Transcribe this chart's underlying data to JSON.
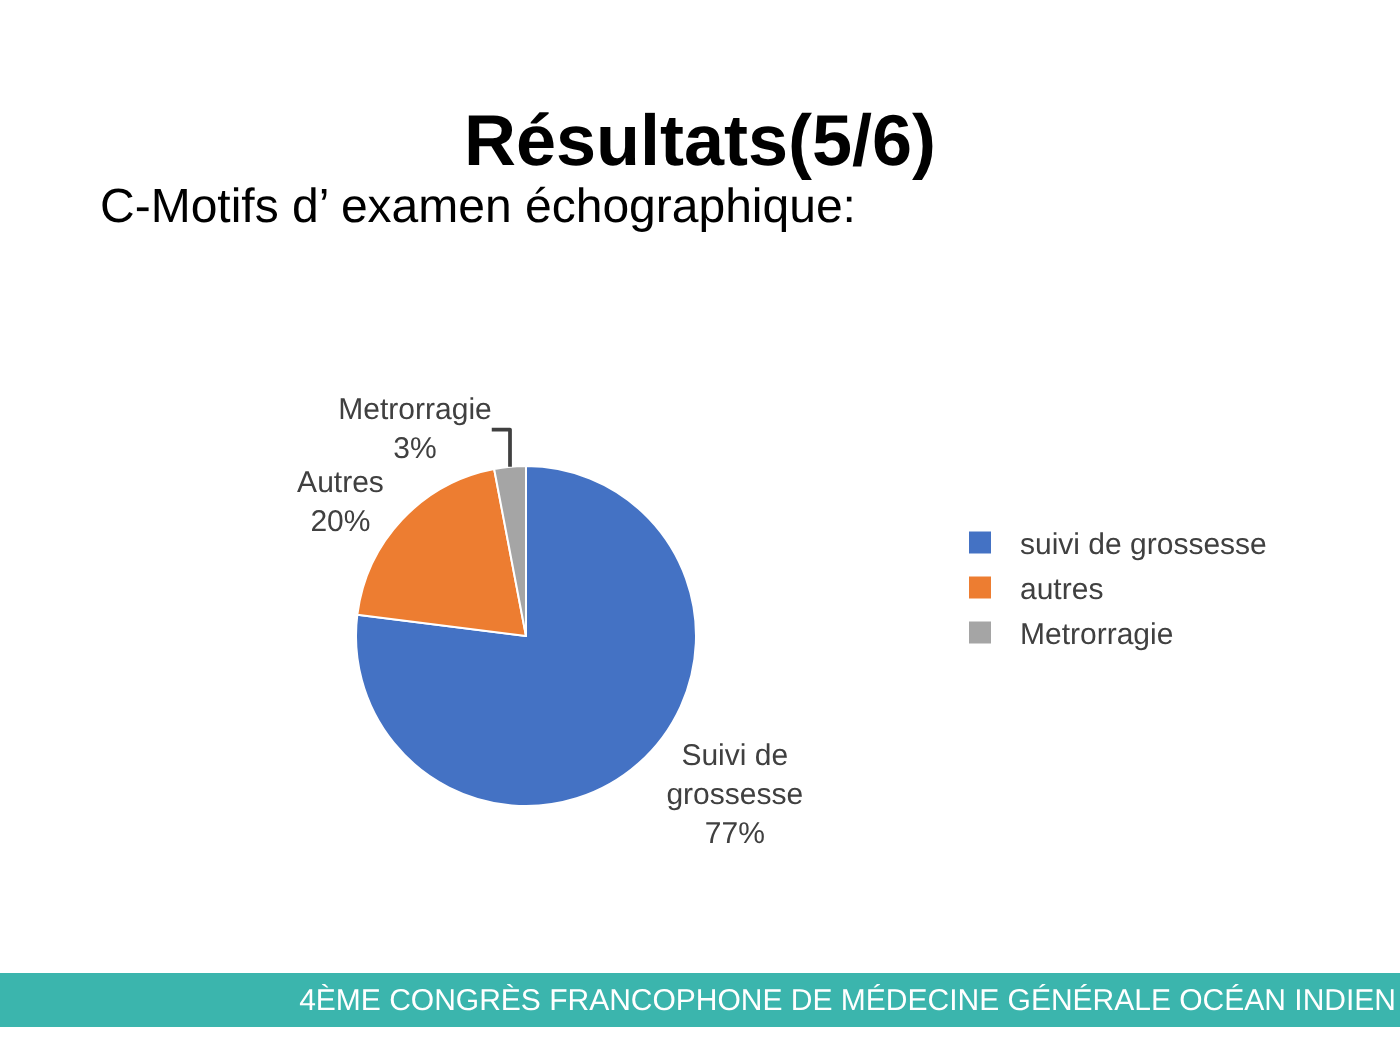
{
  "chart_data": {
    "type": "pie",
    "title": "Résultats(5/6)",
    "subtitle": "C-Motifs d’ examen échographique:",
    "categories": [
      "suivi de grossesse",
      "autres",
      "Metrorragie"
    ],
    "values": [
      77,
      20,
      3
    ],
    "colors": [
      "#4472c4",
      "#ed7d31",
      "#a5a5a5"
    ],
    "value_labels": [
      "Suivi de\ngrossesse\n77%",
      "Autres\n20%",
      "Metrorragie\n3%"
    ],
    "legend": "right",
    "annotations": [
      "4ÈME CONGRÈS FRANCOPHONE DE MÉDECINE GÉNÉRALE OCÉAN INDIEN"
    ]
  }
}
